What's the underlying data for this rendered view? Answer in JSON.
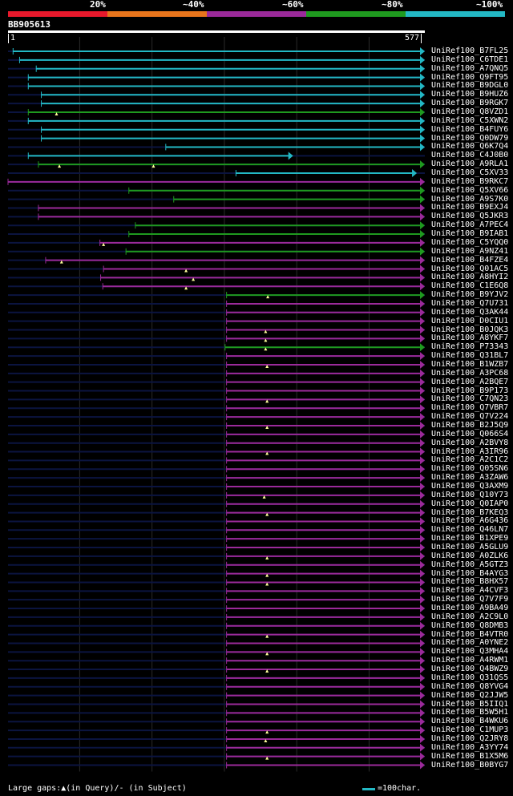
{
  "colors": {
    "bg": "#000000",
    "red": "#e8192c",
    "orange": "#e8751c",
    "purple": "#9b2a9a",
    "green": "#1f9a1f",
    "cyan": "#23b8c4",
    "dark": "#0b1440",
    "grid": "#2b2b2b"
  },
  "legend": {
    "labels": [
      "20%",
      "~40%",
      "~60%",
      "~80%",
      "~100%"
    ],
    "segments": [
      "red",
      "orange",
      "purple",
      "green",
      "cyan"
    ]
  },
  "query": {
    "id": "BB905613",
    "start": "1",
    "end": "577",
    "length": 577
  },
  "footer": {
    "gaps_text": "Large gaps:▲(in Query)/- (in Subject)",
    "scale_text": "=100char."
  },
  "hits": [
    {
      "name": "UniRef100_B7FL25",
      "color": "cyan",
      "start": 8,
      "end": 577,
      "gaps": []
    },
    {
      "name": "UniRef100_C6TDE1",
      "color": "cyan",
      "start": 17,
      "end": 577,
      "gaps": []
    },
    {
      "name": "UniRef100_A7QNQ5",
      "color": "cyan",
      "start": 40,
      "end": 577,
      "gaps": []
    },
    {
      "name": "UniRef100_Q9FT95",
      "color": "cyan",
      "start": 29,
      "end": 577,
      "gaps": []
    },
    {
      "name": "UniRef100_B9DGL0",
      "color": "cyan",
      "start": 29,
      "end": 577,
      "gaps": []
    },
    {
      "name": "UniRef100_B9HUZ6",
      "color": "cyan",
      "start": 47,
      "end": 577,
      "gaps": []
    },
    {
      "name": "UniRef100_B9RGK7",
      "color": "cyan",
      "start": 47,
      "end": 577,
      "gaps": []
    },
    {
      "name": "UniRef100_Q8VZD1",
      "color": "green",
      "start": 29,
      "end": 577,
      "gaps": [
        68
      ]
    },
    {
      "name": "UniRef100_C5XWN2",
      "color": "cyan",
      "start": 29,
      "end": 577,
      "gaps": []
    },
    {
      "name": "UniRef100_B4FUY6",
      "color": "cyan",
      "start": 47,
      "end": 577,
      "gaps": []
    },
    {
      "name": "UniRef100_Q0DW79",
      "color": "cyan",
      "start": 47,
      "end": 577,
      "gaps": []
    },
    {
      "name": "UniRef100_Q6K7Q4",
      "color": "cyan",
      "start": 219,
      "end": 577,
      "gaps": []
    },
    {
      "name": "UniRef100_C4J0B0",
      "color": "cyan",
      "start": 29,
      "end": 395,
      "gaps": []
    },
    {
      "name": "UniRef100_A9RLA1",
      "color": "green",
      "start": 43,
      "end": 577,
      "gaps": [
        72,
        202
      ]
    },
    {
      "name": "UniRef100_C5XV33",
      "color": "cyan",
      "start": 316,
      "end": 566,
      "gaps": []
    },
    {
      "name": "UniRef100_B9RKC7",
      "color": "purple",
      "start": 1,
      "end": 577,
      "gaps": []
    },
    {
      "name": "UniRef100_Q5XV66",
      "color": "green",
      "start": 168,
      "end": 577,
      "gaps": []
    },
    {
      "name": "UniRef100_A9S7K0",
      "color": "green",
      "start": 230,
      "end": 577,
      "gaps": []
    },
    {
      "name": "UniRef100_B9EXJ4",
      "color": "purple",
      "start": 43,
      "end": 577,
      "gaps": []
    },
    {
      "name": "UniRef100_Q5JKR3",
      "color": "purple",
      "start": 43,
      "end": 577,
      "gaps": []
    },
    {
      "name": "UniRef100_A7PEC4",
      "color": "green",
      "start": 177,
      "end": 577,
      "gaps": []
    },
    {
      "name": "UniRef100_B9IAB1",
      "color": "green",
      "start": 168,
      "end": 577,
      "gaps": []
    },
    {
      "name": "UniRef100_C5YQQ0",
      "color": "purple",
      "start": 128,
      "end": 577,
      "gaps": [
        133
      ]
    },
    {
      "name": "UniRef100_A9NZ41",
      "color": "green",
      "start": 164,
      "end": 577,
      "gaps": []
    },
    {
      "name": "UniRef100_B4FZE4",
      "color": "purple",
      "start": 53,
      "end": 577,
      "gaps": [
        75
      ]
    },
    {
      "name": "UniRef100_Q01AC5",
      "color": "purple",
      "start": 133,
      "end": 577,
      "gaps": [
        247
      ]
    },
    {
      "name": "UniRef100_A8HYI2",
      "color": "purple",
      "start": 129,
      "end": 577,
      "gaps": [
        257
      ]
    },
    {
      "name": "UniRef100_C1E6Q8",
      "color": "purple",
      "start": 132,
      "end": 577,
      "gaps": [
        247
      ]
    },
    {
      "name": "UniRef100_B9YJV2",
      "color": "green",
      "start": 303,
      "end": 577,
      "gaps": [
        360
      ]
    },
    {
      "name": "UniRef100_Q7U731",
      "color": "purple",
      "start": 303,
      "end": 577,
      "gaps": []
    },
    {
      "name": "UniRef100_Q3AK44",
      "color": "purple",
      "start": 303,
      "end": 577,
      "gaps": []
    },
    {
      "name": "UniRef100_D0CIU1",
      "color": "purple",
      "start": 303,
      "end": 577,
      "gaps": []
    },
    {
      "name": "UniRef100_B0JQK3",
      "color": "purple",
      "start": 303,
      "end": 577,
      "gaps": [
        357
      ]
    },
    {
      "name": "UniRef100_A8YKF7",
      "color": "purple",
      "start": 303,
      "end": 577,
      "gaps": [
        357
      ]
    },
    {
      "name": "UniRef100_P73343",
      "color": "green",
      "start": 301,
      "end": 577,
      "gaps": [
        357
      ]
    },
    {
      "name": "UniRef100_Q31BL7",
      "color": "purple",
      "start": 303,
      "end": 577,
      "gaps": []
    },
    {
      "name": "UniRef100_B1WZB7",
      "color": "purple",
      "start": 303,
      "end": 577,
      "gaps": [
        359
      ]
    },
    {
      "name": "UniRef100_A3PC68",
      "color": "purple",
      "start": 303,
      "end": 577,
      "gaps": []
    },
    {
      "name": "UniRef100_A2BQE7",
      "color": "purple",
      "start": 303,
      "end": 577,
      "gaps": []
    },
    {
      "name": "UniRef100_B9P173",
      "color": "purple",
      "start": 303,
      "end": 577,
      "gaps": []
    },
    {
      "name": "UniRef100_C7QN23",
      "color": "purple",
      "start": 303,
      "end": 577,
      "gaps": [
        359
      ]
    },
    {
      "name": "UniRef100_Q7VBR7",
      "color": "purple",
      "start": 303,
      "end": 577,
      "gaps": []
    },
    {
      "name": "UniRef100_Q7V224",
      "color": "purple",
      "start": 303,
      "end": 577,
      "gaps": []
    },
    {
      "name": "UniRef100_B2J5Q9",
      "color": "purple",
      "start": 303,
      "end": 577,
      "gaps": [
        359
      ]
    },
    {
      "name": "UniRef100_Q066S4",
      "color": "purple",
      "start": 303,
      "end": 577,
      "gaps": []
    },
    {
      "name": "UniRef100_A2BVY8",
      "color": "purple",
      "start": 303,
      "end": 577,
      "gaps": []
    },
    {
      "name": "UniRef100_A3IR96",
      "color": "purple",
      "start": 303,
      "end": 577,
      "gaps": [
        359
      ]
    },
    {
      "name": "UniRef100_A2C1C2",
      "color": "purple",
      "start": 303,
      "end": 577,
      "gaps": []
    },
    {
      "name": "UniRef100_Q05SN6",
      "color": "purple",
      "start": 303,
      "end": 577,
      "gaps": []
    },
    {
      "name": "UniRef100_A3ZAW6",
      "color": "purple",
      "start": 303,
      "end": 577,
      "gaps": []
    },
    {
      "name": "UniRef100_Q3AXM9",
      "color": "purple",
      "start": 303,
      "end": 577,
      "gaps": []
    },
    {
      "name": "UniRef100_Q10Y73",
      "color": "purple",
      "start": 303,
      "end": 577,
      "gaps": [
        355
      ]
    },
    {
      "name": "UniRef100_Q0IAP0",
      "color": "purple",
      "start": 303,
      "end": 577,
      "gaps": []
    },
    {
      "name": "UniRef100_B7KEQ3",
      "color": "purple",
      "start": 303,
      "end": 577,
      "gaps": [
        359
      ]
    },
    {
      "name": "UniRef100_A6G436",
      "color": "purple",
      "start": 303,
      "end": 577,
      "gaps": []
    },
    {
      "name": "UniRef100_Q46LN7",
      "color": "purple",
      "start": 303,
      "end": 577,
      "gaps": []
    },
    {
      "name": "UniRef100_B1XPE9",
      "color": "purple",
      "start": 303,
      "end": 577,
      "gaps": []
    },
    {
      "name": "UniRef100_A5GLU9",
      "color": "purple",
      "start": 303,
      "end": 577,
      "gaps": []
    },
    {
      "name": "UniRef100_A0ZLK6",
      "color": "purple",
      "start": 303,
      "end": 577,
      "gaps": [
        359
      ]
    },
    {
      "name": "UniRef100_A5GTZ3",
      "color": "purple",
      "start": 303,
      "end": 577,
      "gaps": []
    },
    {
      "name": "UniRef100_B4AYG3",
      "color": "purple",
      "start": 303,
      "end": 577,
      "gaps": [
        359
      ]
    },
    {
      "name": "UniRef100_B8HX57",
      "color": "purple",
      "start": 303,
      "end": 577,
      "gaps": [
        359
      ]
    },
    {
      "name": "UniRef100_A4CVF3",
      "color": "purple",
      "start": 303,
      "end": 577,
      "gaps": []
    },
    {
      "name": "UniRef100_Q7V7F9",
      "color": "purple",
      "start": 303,
      "end": 577,
      "gaps": []
    },
    {
      "name": "UniRef100_A9BA49",
      "color": "purple",
      "start": 303,
      "end": 577,
      "gaps": []
    },
    {
      "name": "UniRef100_A2C9L0",
      "color": "purple",
      "start": 303,
      "end": 577,
      "gaps": []
    },
    {
      "name": "UniRef100_Q8DMB3",
      "color": "purple",
      "start": 303,
      "end": 577,
      "gaps": []
    },
    {
      "name": "UniRef100_B4VTR0",
      "color": "purple",
      "start": 303,
      "end": 577,
      "gaps": [
        359
      ]
    },
    {
      "name": "UniRef100_A0YNE2",
      "color": "purple",
      "start": 303,
      "end": 577,
      "gaps": []
    },
    {
      "name": "UniRef100_Q3MHA4",
      "color": "purple",
      "start": 303,
      "end": 577,
      "gaps": [
        359
      ]
    },
    {
      "name": "UniRef100_A4RWM1",
      "color": "purple",
      "start": 303,
      "end": 577,
      "gaps": []
    },
    {
      "name": "UniRef100_Q4BWZ9",
      "color": "purple",
      "start": 303,
      "end": 577,
      "gaps": [
        359
      ]
    },
    {
      "name": "UniRef100_Q31QS5",
      "color": "purple",
      "start": 303,
      "end": 577,
      "gaps": []
    },
    {
      "name": "UniRef100_Q8YVG4",
      "color": "purple",
      "start": 303,
      "end": 577,
      "gaps": []
    },
    {
      "name": "UniRef100_Q2JJW5",
      "color": "purple",
      "start": 303,
      "end": 577,
      "gaps": []
    },
    {
      "name": "UniRef100_B5IIQ1",
      "color": "purple",
      "start": 303,
      "end": 577,
      "gaps": []
    },
    {
      "name": "UniRef100_B5W5H1",
      "color": "purple",
      "start": 303,
      "end": 577,
      "gaps": []
    },
    {
      "name": "UniRef100_B4WKU6",
      "color": "purple",
      "start": 303,
      "end": 577,
      "gaps": []
    },
    {
      "name": "UniRef100_C1MUP3",
      "color": "purple",
      "start": 303,
      "end": 577,
      "gaps": [
        359
      ]
    },
    {
      "name": "UniRef100_Q2JRY8",
      "color": "purple",
      "start": 303,
      "end": 577,
      "gaps": [
        357
      ]
    },
    {
      "name": "UniRef100_A3YY74",
      "color": "purple",
      "start": 303,
      "end": 577,
      "gaps": []
    },
    {
      "name": "UniRef100_B1X5M6",
      "color": "purple",
      "start": 303,
      "end": 577,
      "gaps": [
        359
      ]
    },
    {
      "name": "UniRef100_B0BYG7",
      "color": "purple",
      "start": 303,
      "end": 577,
      "gaps": []
    }
  ]
}
